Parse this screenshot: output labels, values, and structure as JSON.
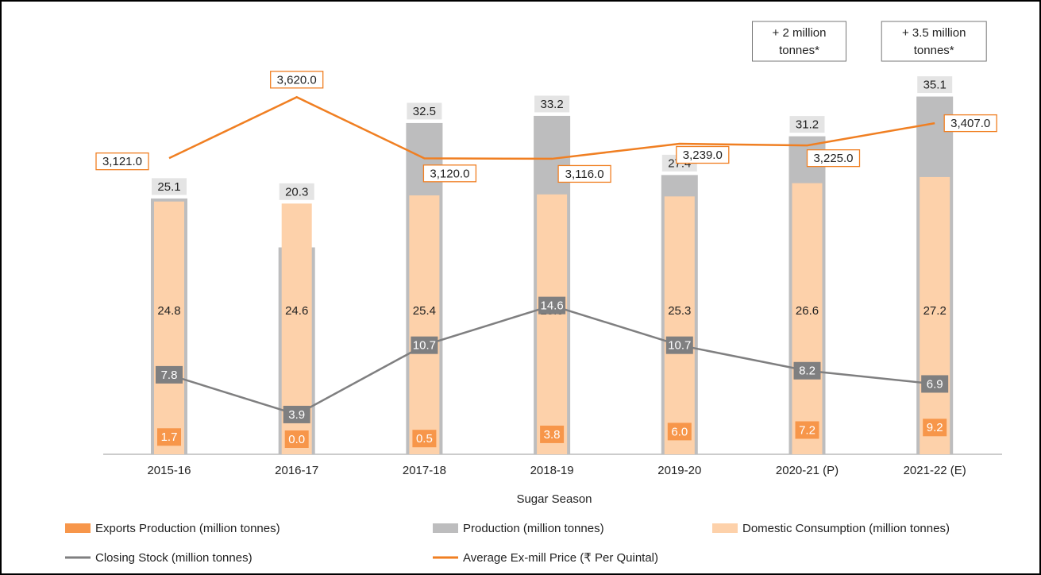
{
  "chart_data": {
    "type": "bar",
    "x_label": "Sugar Season",
    "categories": [
      "2015-16",
      "2016-17",
      "2017-18",
      "2018-19",
      "2019-20",
      "2020-21 (P)",
      "2021-22 (E)"
    ],
    "annotations": [
      {
        "lines": [
          "+ 2 million",
          "tonnes*"
        ],
        "category": 5
      },
      {
        "lines": [
          "+ 3.5 million",
          "tonnes*"
        ],
        "category": 6
      }
    ],
    "ylim": [
      0,
      36
    ],
    "y2lim": [
      700,
      3700
    ],
    "series": [
      {
        "name": "Exports Production (million tonnes)",
        "type": "bar",
        "color": "#f7964a",
        "values": [
          1.7,
          0,
          0.5,
          3.8,
          6,
          7.2,
          9.2
        ],
        "value_labels": [
          "1.7",
          "0.0",
          "0.5",
          "3.8",
          "6.0",
          "7.2",
          "9.2"
        ]
      },
      {
        "name": "Production (million tonnes)",
        "type": "bar",
        "color": "#bdbdbe",
        "values": [
          25.1,
          20.3,
          32.5,
          33.2,
          27.4,
          31.2,
          35.1
        ],
        "value_labels": [
          "25.1",
          "20.3",
          "32.5",
          "33.2",
          "27.4",
          "31.2",
          "35.1"
        ]
      },
      {
        "name": "Domestic Consumption (million tonnes)",
        "type": "bar",
        "color": "#fdd1aa",
        "values": [
          24.8,
          24.6,
          25.4,
          25.5,
          25.3,
          26.6,
          27.2
        ],
        "value_labels": [
          "24.8",
          "24.6",
          "25.4",
          "25.5",
          "25.3",
          "26.6",
          "27.2"
        ]
      },
      {
        "name": "Closing Stock (million tonnes)",
        "type": "line",
        "color": "#7f7f80",
        "values": [
          7.8,
          3.9,
          10.7,
          14.6,
          10.7,
          8.2,
          6.9
        ],
        "value_labels": [
          "7.8",
          "3.9",
          "10.7",
          "14.6",
          "10.7",
          "8.2",
          "6.9"
        ]
      },
      {
        "name": "Average Ex-mill Price (₹ Per Quintal)",
        "type": "line",
        "axis": "y2",
        "color": "#f07f22",
        "values": [
          3121,
          3620,
          3120,
          3116,
          3239,
          3225,
          3407
        ],
        "value_labels": [
          "3,121.0",
          "3,620.0",
          "3,120.0",
          "3,116.0",
          "3,239.0",
          "3,225.0",
          "3,407.0"
        ]
      }
    ]
  }
}
